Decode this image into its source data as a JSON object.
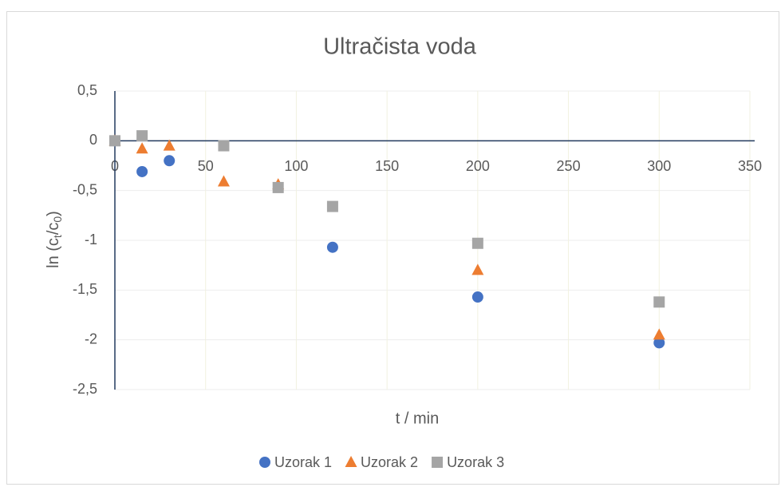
{
  "chart_data": {
    "type": "scatter",
    "title": "Ultračista voda",
    "xlabel": "t / min",
    "ylabel": [
      "ln (c",
      "t",
      "/c",
      "0",
      ")"
    ],
    "xlim": [
      0,
      350
    ],
    "xticks": [
      0,
      50,
      100,
      150,
      200,
      250,
      300,
      350
    ],
    "ylim": [
      -2.5,
      0.5
    ],
    "yticks": [
      {
        "value": -2.5,
        "label": "-2,5"
      },
      -2,
      {
        "value": -1.5,
        "label": "-1,5"
      },
      -1,
      {
        "value": -0.5,
        "label": "-0,5"
      },
      0,
      {
        "value": 0.5,
        "label": "0,5"
      }
    ],
    "grid": true,
    "legend": "bottom",
    "series": [
      {
        "name": "Uzorak 1",
        "color": "#4472c4",
        "marker": "circle",
        "x": [
          0,
          15,
          30,
          120,
          200,
          300
        ],
        "values": [
          0,
          -0.31,
          -0.2,
          -1.07,
          -1.57,
          -2.03
        ]
      },
      {
        "name": "Uzorak 2",
        "color": "#ed7d31",
        "marker": "triangle",
        "x": [
          0,
          15,
          30,
          60,
          90,
          200,
          300
        ],
        "values": [
          0,
          -0.08,
          -0.05,
          -0.41,
          -0.44,
          -1.3,
          -1.95
        ]
      },
      {
        "name": "Uzorak 3",
        "color": "#a5a5a5",
        "marker": "square",
        "x": [
          0,
          15,
          60,
          90,
          120,
          200,
          300
        ],
        "values": [
          0,
          0.05,
          -0.05,
          -0.47,
          -0.66,
          -1.03,
          -1.62
        ]
      }
    ]
  }
}
